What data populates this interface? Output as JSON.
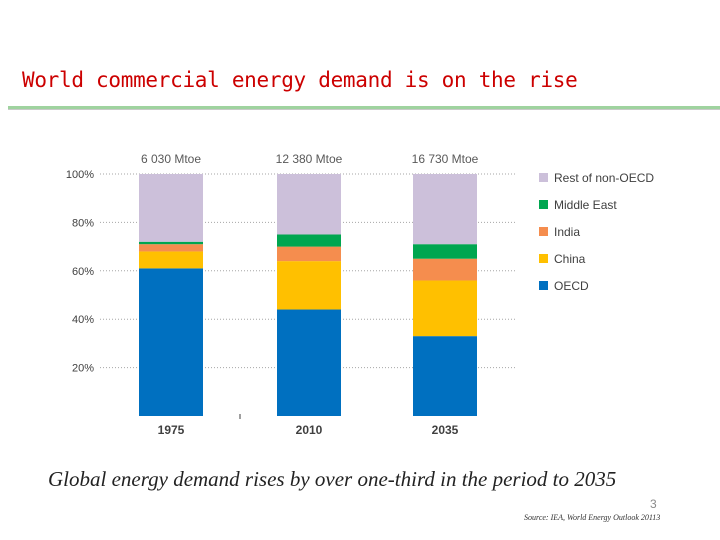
{
  "slide": {
    "title": "World commercial energy demand is on the rise",
    "subtitle": "Global energy demand rises by over one-third in the period to 2035",
    "page_number": "3",
    "source": "Source: IEA, World Energy Outlook 20113"
  },
  "chart_data": {
    "type": "bar",
    "stacked": true,
    "categories": [
      "1975",
      "2010",
      "2035"
    ],
    "totals": [
      "6 030 Mtoe",
      "12 380 Mtoe",
      "16 730 Mtoe"
    ],
    "series": [
      {
        "name": "OECD",
        "color": "#0070c0",
        "values": [
          61,
          44,
          33
        ]
      },
      {
        "name": "China",
        "color": "#ffc000",
        "values": [
          7,
          20,
          23
        ]
      },
      {
        "name": "India",
        "color": "#f58d4e",
        "values": [
          3,
          6,
          9
        ]
      },
      {
        "name": "Middle East",
        "color": "#00a650",
        "values": [
          1,
          5,
          6
        ]
      },
      {
        "name": "Rest of non-OECD",
        "color": "#ccc0da",
        "values": [
          28,
          25,
          29
        ]
      }
    ],
    "yticks": [
      "20%",
      "40%",
      "60%",
      "80%",
      "100%"
    ],
    "ylim": [
      0,
      100
    ],
    "legend_position": "right",
    "gridlines": true
  }
}
